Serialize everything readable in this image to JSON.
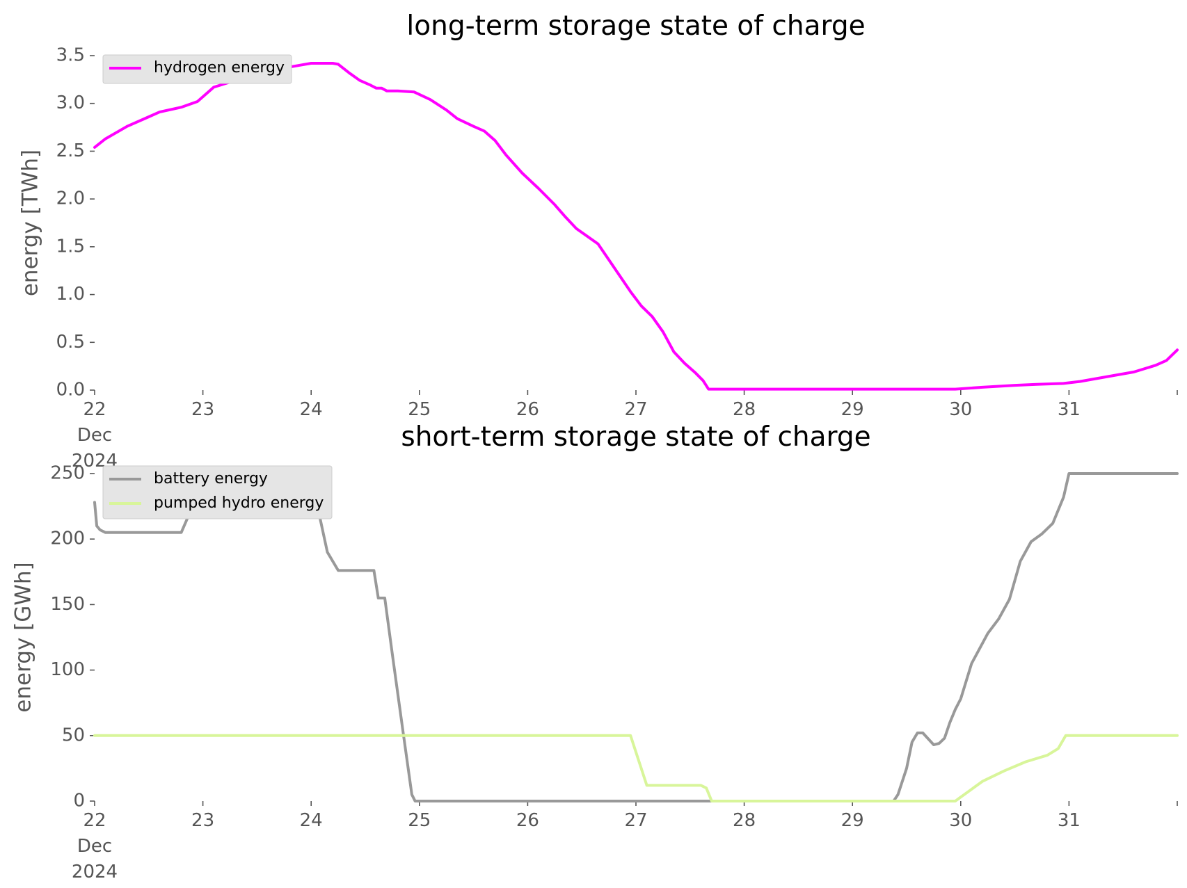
{
  "chart_data": [
    {
      "type": "line",
      "title": "long-term storage state of charge",
      "xlabel": "",
      "ylabel": "energy [TWh]",
      "x_unit": "day of December 2024",
      "xlim": [
        22,
        32
      ],
      "ylim": [
        0,
        3.5
      ],
      "x_ticks": [
        22,
        23,
        24,
        25,
        26,
        27,
        28,
        29,
        30,
        31,
        32
      ],
      "x_tick_labels": [
        [
          "22",
          "Dec",
          "2024"
        ],
        [
          "23"
        ],
        [
          "24"
        ],
        [
          "25"
        ],
        [
          "26"
        ],
        [
          "27"
        ],
        [
          "28"
        ],
        [
          "29"
        ],
        [
          "30"
        ],
        [
          "31"
        ],
        [
          ""
        ]
      ],
      "y_ticks": [
        0,
        0.5,
        1.0,
        1.5,
        2.0,
        2.5,
        3.0,
        3.5
      ],
      "y_tick_labels": [
        "0.0",
        "0.5",
        "1.0",
        "1.5",
        "2.0",
        "2.5",
        "3.0",
        "3.5"
      ],
      "legend_position": "top-left",
      "grid": false,
      "series": [
        {
          "name": "hydrogen energy",
          "color": "#ff00ff",
          "x": [
            22.0,
            22.1,
            22.3,
            22.5,
            22.6,
            22.8,
            22.95,
            23.1,
            23.3,
            23.5,
            23.7,
            23.9,
            24.0,
            24.2,
            24.25,
            24.35,
            24.45,
            24.55,
            24.6,
            24.65,
            24.7,
            24.8,
            24.95,
            25.1,
            25.25,
            25.35,
            25.5,
            25.6,
            25.7,
            25.8,
            25.95,
            26.1,
            26.25,
            26.35,
            26.45,
            26.55,
            26.65,
            26.8,
            26.95,
            27.05,
            27.15,
            27.25,
            27.35,
            27.45,
            27.55,
            27.62,
            27.67,
            28.0,
            29.0,
            29.95,
            30.2,
            30.5,
            30.7,
            30.95,
            31.1,
            31.2,
            31.4,
            31.6,
            31.8,
            31.9,
            32.0
          ],
          "y": [
            2.54,
            2.63,
            2.76,
            2.86,
            2.91,
            2.96,
            3.02,
            3.17,
            3.24,
            3.3,
            3.36,
            3.4,
            3.42,
            3.42,
            3.41,
            3.32,
            3.24,
            3.19,
            3.16,
            3.16,
            3.13,
            3.13,
            3.12,
            3.04,
            2.93,
            2.84,
            2.76,
            2.71,
            2.61,
            2.46,
            2.27,
            2.11,
            1.94,
            1.81,
            1.69,
            1.61,
            1.53,
            1.28,
            1.03,
            0.88,
            0.77,
            0.61,
            0.4,
            0.28,
            0.18,
            0.1,
            0.01,
            0.01,
            0.01,
            0.01,
            0.03,
            0.05,
            0.06,
            0.07,
            0.09,
            0.11,
            0.15,
            0.19,
            0.26,
            0.31,
            0.42
          ]
        }
      ]
    },
    {
      "type": "line",
      "title": "short-term storage state of charge",
      "xlabel": "",
      "ylabel": "energy [GWh]",
      "x_unit": "day of December 2024",
      "xlim": [
        22,
        32
      ],
      "ylim": [
        0,
        250
      ],
      "x_ticks": [
        22,
        23,
        24,
        25,
        26,
        27,
        28,
        29,
        30,
        31,
        32
      ],
      "x_tick_labels": [
        [
          "22",
          "Dec",
          "2024"
        ],
        [
          "23"
        ],
        [
          "24"
        ],
        [
          "25"
        ],
        [
          "26"
        ],
        [
          "27"
        ],
        [
          "28"
        ],
        [
          "29"
        ],
        [
          "30"
        ],
        [
          "31"
        ],
        [
          ""
        ]
      ],
      "y_ticks": [
        0,
        50,
        100,
        150,
        200,
        250
      ],
      "y_tick_labels": [
        "0",
        "50",
        "100",
        "150",
        "200",
        "250"
      ],
      "legend_position": "top-left",
      "grid": false,
      "series": [
        {
          "name": "battery energy",
          "color": "#999999",
          "x": [
            22.0,
            22.02,
            22.05,
            22.1,
            22.8,
            22.9,
            22.95,
            23.0,
            23.95,
            24.05,
            24.15,
            24.25,
            24.4,
            24.58,
            24.62,
            24.68,
            24.75,
            24.85,
            24.93,
            24.96,
            25.0,
            26.0,
            27.0,
            28.0,
            29.0,
            29.38,
            29.42,
            29.5,
            29.55,
            29.6,
            29.65,
            29.75,
            29.8,
            29.85,
            29.9,
            29.95,
            30.0,
            30.1,
            30.25,
            30.35,
            30.45,
            30.55,
            30.65,
            30.75,
            30.85,
            30.95,
            31.0,
            32.0
          ],
          "y": [
            228,
            210,
            207,
            205,
            205,
            224,
            240,
            250,
            250,
            228,
            190,
            176,
            176,
            176,
            155,
            155,
            112,
            52,
            5,
            0,
            0,
            0,
            0,
            0,
            0,
            0,
            5,
            25,
            45,
            52,
            52,
            43,
            44,
            48,
            60,
            70,
            78,
            105,
            128,
            139,
            154,
            183,
            198,
            204,
            212,
            232,
            250,
            250
          ]
        },
        {
          "name": "pumped hydro energy",
          "color": "#d8f59a",
          "x": [
            22.0,
            26.95,
            27.1,
            27.6,
            27.65,
            27.7,
            28.0,
            29.0,
            29.95,
            30.0,
            30.2,
            30.4,
            30.6,
            30.8,
            30.9,
            30.97,
            32.0
          ],
          "y": [
            50,
            50,
            12,
            12,
            10,
            0,
            0,
            0,
            0,
            3,
            15,
            23,
            30,
            35,
            40,
            50,
            50
          ]
        }
      ]
    }
  ]
}
